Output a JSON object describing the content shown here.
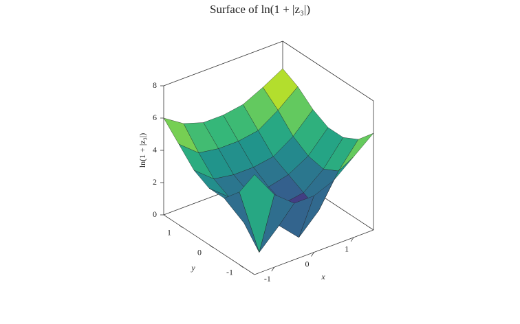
{
  "chart_data": {
    "type": "surface",
    "title": "Surface of ln(1 + |z₃|)",
    "xlabel": "x",
    "ylabel": "y",
    "zlabel": "ln(1 + |z₃|)",
    "x": [
      -1.5,
      -1,
      -0.5,
      0,
      0.5,
      1,
      1.5
    ],
    "y": [
      -1.5,
      -1,
      -0.5,
      0,
      0.5,
      1,
      1.5
    ],
    "z": [
      [
        6.2,
        4.5,
        3.5,
        3.5,
        4.0,
        5.0,
        6.0
      ],
      [
        4.5,
        0.3,
        1.5,
        0.3,
        1.5,
        3.5,
        5.0
      ],
      [
        3.5,
        1.5,
        2.0,
        1.8,
        2.0,
        3.0,
        4.5
      ],
      [
        3.5,
        2.5,
        2.3,
        2.2,
        2.5,
        3.2,
        4.5
      ],
      [
        4.0,
        3.0,
        2.8,
        2.8,
        3.0,
        3.8,
        5.0
      ],
      [
        5.0,
        4.0,
        3.8,
        3.8,
        4.0,
        4.8,
        5.8
      ],
      [
        6.0,
        5.2,
        4.8,
        4.8,
        5.0,
        5.6,
        6.3
      ]
    ],
    "colormap": "viridis",
    "xlim": [
      -1.5,
      1.5
    ],
    "ylim": [
      -1.5,
      1.5
    ],
    "zlim": [
      0,
      8
    ],
    "xticks": [
      -1,
      0,
      1
    ],
    "yticks": [
      -1,
      0,
      1
    ],
    "zticks": [
      0,
      2,
      4,
      6,
      8
    ],
    "grid": false
  }
}
